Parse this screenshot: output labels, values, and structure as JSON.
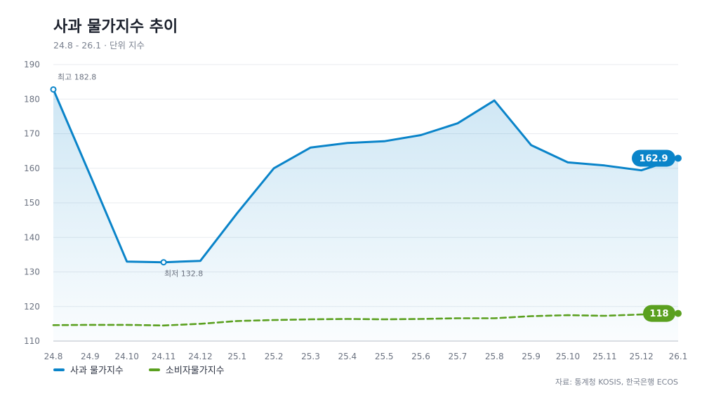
{
  "header": {
    "title": "사과 물가지수 추이",
    "subtitle": "24.8 - 26.1 · 단위 지수"
  },
  "chart_data": {
    "type": "line",
    "title": "사과 물가지수 추이",
    "subtitle": "24.8 - 26.1 · 단위 지수",
    "xlabel": "",
    "ylabel": "",
    "categories": [
      "24.8",
      "24.9",
      "24.10",
      "24.11",
      "24.12",
      "25.1",
      "25.2",
      "25.3",
      "25.4",
      "25.5",
      "25.6",
      "25.7",
      "25.8",
      "25.9",
      "25.10",
      "25.11",
      "25.12",
      "26.1"
    ],
    "yticks": [
      110,
      120,
      130,
      140,
      150,
      160,
      170,
      180,
      190
    ],
    "ylim": [
      110,
      190
    ],
    "grid": true,
    "legend_position": "bottom-left",
    "series": [
      {
        "name": "사과 물가지수",
        "color": "#0a84c9",
        "style": "solid",
        "area": true,
        "values": [
          182.8,
          158.0,
          133.0,
          132.8,
          133.2,
          147.0,
          160.0,
          166.0,
          167.3,
          167.8,
          169.6,
          173.0,
          179.6,
          166.7,
          161.7,
          160.8,
          159.4,
          162.9
        ],
        "end_label": "162.9"
      },
      {
        "name": "소비자물가지수",
        "color": "#5aa01f",
        "style": "dashed",
        "area": false,
        "values": [
          114.6,
          114.7,
          114.7,
          114.5,
          115.0,
          115.8,
          116.1,
          116.3,
          116.4,
          116.3,
          116.4,
          116.6,
          116.6,
          117.2,
          117.5,
          117.3,
          117.7,
          118.0
        ],
        "end_label": "118"
      }
    ],
    "annotations": [
      {
        "series": 0,
        "index": 0,
        "text": "최고 182.8",
        "position": "above"
      },
      {
        "series": 0,
        "index": 3,
        "text": "최저 132.8",
        "position": "below"
      }
    ]
  },
  "source": "자료: 통계청 KOSIS, 한국은행 ECOS"
}
